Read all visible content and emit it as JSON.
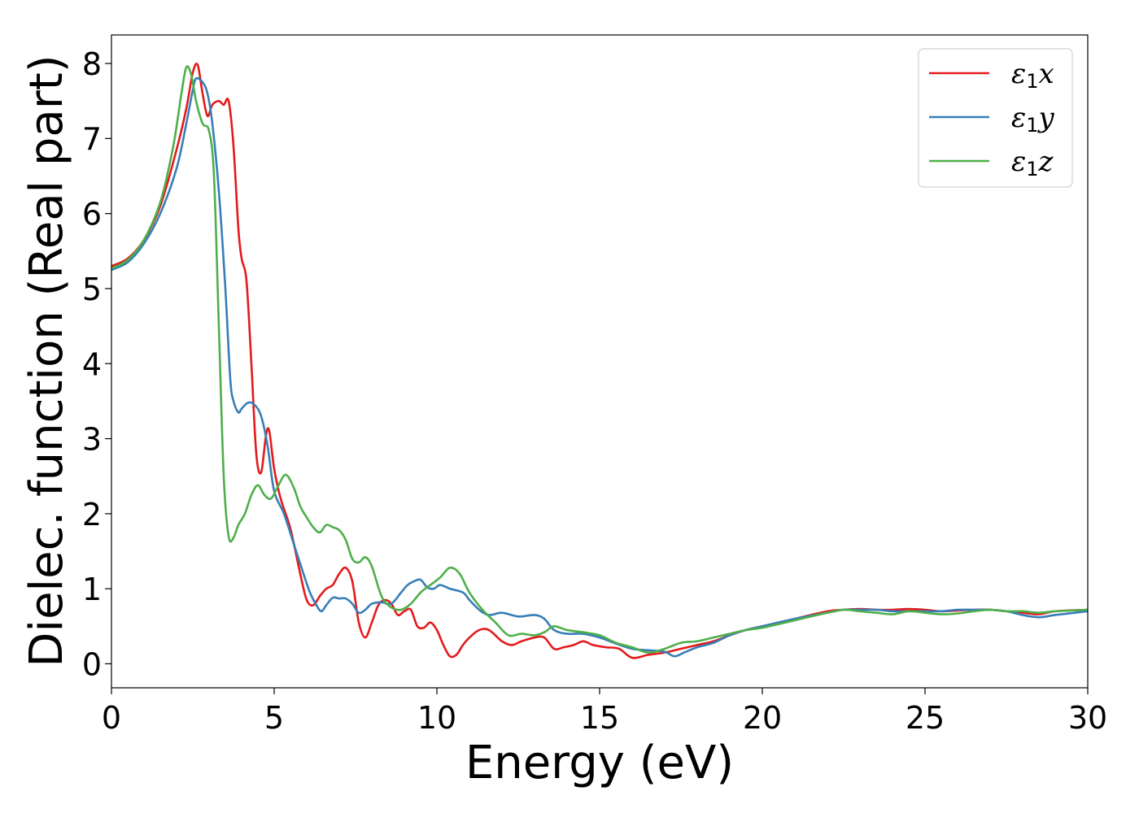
{
  "chart_data": {
    "type": "line",
    "title": "",
    "xlabel": "Energy (eV)",
    "ylabel": "Dielec. function (Real part)",
    "xlim": [
      0,
      30
    ],
    "ylim": [
      -0.32,
      8.38
    ],
    "xticks": [
      0,
      5,
      10,
      15,
      20,
      25,
      30
    ],
    "yticks": [
      0,
      1,
      2,
      3,
      4,
      5,
      6,
      7,
      8
    ],
    "grid": false,
    "legend_position": "top-right",
    "series": [
      {
        "name": "ε₁x",
        "legend": {
          "base": "ε",
          "sub": "1",
          "tail": "x"
        },
        "color": "#e41a1c",
        "x": [
          0,
          0.5,
          1.0,
          1.5,
          2.0,
          2.3,
          2.5,
          2.65,
          2.8,
          2.95,
          3.1,
          3.3,
          3.45,
          3.6,
          3.75,
          3.9,
          4.0,
          4.15,
          4.3,
          4.45,
          4.6,
          4.75,
          4.85,
          5.0,
          5.2,
          5.5,
          5.8,
          6.0,
          6.2,
          6.4,
          6.6,
          6.8,
          7.0,
          7.2,
          7.4,
          7.6,
          7.8,
          8.0,
          8.2,
          8.4,
          8.6,
          8.8,
          9.0,
          9.2,
          9.4,
          9.6,
          9.8,
          10.0,
          10.2,
          10.4,
          10.6,
          10.8,
          11.0,
          11.3,
          11.6,
          12.0,
          12.3,
          12.6,
          13.0,
          13.3,
          13.6,
          13.9,
          14.2,
          14.5,
          14.8,
          15.2,
          15.6,
          16.0,
          16.5,
          17.0,
          17.5,
          18.0,
          18.5,
          19.0,
          19.5,
          20.0,
          21.0,
          22.0,
          22.5,
          23.0,
          23.5,
          24.0,
          24.5,
          25.0,
          25.5,
          26.0,
          26.5,
          27.0,
          27.5,
          28.0,
          28.5,
          29.0,
          30.0
        ],
        "values": [
          5.3,
          5.4,
          5.65,
          6.1,
          6.85,
          7.4,
          7.88,
          7.98,
          7.6,
          7.3,
          7.45,
          7.5,
          7.45,
          7.5,
          6.9,
          5.8,
          5.4,
          5.1,
          4.0,
          2.8,
          2.55,
          3.05,
          3.1,
          2.6,
          2.2,
          1.8,
          1.2,
          0.85,
          0.78,
          0.9,
          1.0,
          1.05,
          1.2,
          1.28,
          1.1,
          0.55,
          0.35,
          0.55,
          0.78,
          0.85,
          0.8,
          0.65,
          0.7,
          0.72,
          0.5,
          0.48,
          0.55,
          0.45,
          0.25,
          0.1,
          0.12,
          0.25,
          0.35,
          0.45,
          0.45,
          0.3,
          0.25,
          0.3,
          0.35,
          0.35,
          0.2,
          0.22,
          0.25,
          0.3,
          0.25,
          0.22,
          0.2,
          0.08,
          0.12,
          0.15,
          0.2,
          0.25,
          0.3,
          0.38,
          0.45,
          0.5,
          0.6,
          0.7,
          0.72,
          0.73,
          0.72,
          0.72,
          0.73,
          0.72,
          0.7,
          0.71,
          0.72,
          0.72,
          0.7,
          0.68,
          0.66,
          0.7,
          0.72
        ]
      },
      {
        "name": "ε₁y",
        "legend": {
          "base": "ε",
          "sub": "1",
          "tail": "y"
        },
        "color": "#377eb8",
        "x": [
          0,
          0.5,
          1.0,
          1.5,
          2.0,
          2.3,
          2.5,
          2.6,
          2.8,
          2.95,
          3.1,
          3.3,
          3.5,
          3.65,
          3.75,
          3.9,
          4.0,
          4.2,
          4.4,
          4.6,
          4.8,
          5.0,
          5.3,
          5.6,
          5.9,
          6.1,
          6.3,
          6.45,
          6.6,
          6.8,
          7.0,
          7.2,
          7.4,
          7.6,
          7.8,
          8.0,
          8.3,
          8.6,
          8.9,
          9.1,
          9.3,
          9.5,
          9.7,
          9.9,
          10.1,
          10.4,
          10.8,
          11.0,
          11.3,
          11.6,
          12.0,
          12.5,
          13.0,
          13.3,
          13.6,
          14.0,
          14.5,
          15.0,
          15.5,
          16.0,
          16.5,
          17.0,
          17.3,
          17.6,
          18.0,
          18.5,
          19.0,
          19.5,
          20.0,
          21.0,
          22.0,
          22.5,
          23.0,
          23.5,
          24.0,
          24.5,
          25.0,
          25.5,
          26.0,
          26.5,
          27.0,
          27.5,
          28.0,
          28.5,
          29.0,
          30.0
        ],
        "values": [
          5.25,
          5.35,
          5.6,
          6.0,
          6.6,
          7.2,
          7.65,
          7.8,
          7.75,
          7.6,
          7.2,
          6.3,
          5.0,
          3.8,
          3.5,
          3.35,
          3.4,
          3.48,
          3.45,
          3.3,
          2.9,
          2.3,
          2.0,
          1.6,
          1.2,
          0.95,
          0.78,
          0.7,
          0.78,
          0.88,
          0.87,
          0.87,
          0.8,
          0.68,
          0.72,
          0.8,
          0.82,
          0.8,
          0.95,
          1.05,
          1.1,
          1.12,
          1.02,
          1.0,
          1.05,
          1.0,
          0.95,
          0.85,
          0.72,
          0.65,
          0.68,
          0.63,
          0.65,
          0.6,
          0.45,
          0.4,
          0.4,
          0.35,
          0.27,
          0.2,
          0.18,
          0.16,
          0.1,
          0.15,
          0.22,
          0.28,
          0.38,
          0.45,
          0.5,
          0.6,
          0.68,
          0.72,
          0.72,
          0.72,
          0.7,
          0.7,
          0.7,
          0.7,
          0.72,
          0.72,
          0.72,
          0.7,
          0.65,
          0.62,
          0.65,
          0.7
        ]
      },
      {
        "name": "ε₁z",
        "legend": {
          "base": "ε",
          "sub": "1",
          "tail": "z"
        },
        "color": "#4daf4a",
        "x": [
          0,
          0.5,
          1.0,
          1.5,
          1.9,
          2.15,
          2.3,
          2.45,
          2.6,
          2.8,
          3.0,
          3.15,
          3.3,
          3.45,
          3.6,
          3.75,
          3.9,
          4.1,
          4.3,
          4.5,
          4.7,
          4.9,
          5.1,
          5.35,
          5.6,
          5.8,
          6.0,
          6.2,
          6.4,
          6.6,
          6.8,
          7.0,
          7.2,
          7.4,
          7.6,
          7.8,
          8.0,
          8.3,
          8.6,
          8.9,
          9.2,
          9.5,
          9.8,
          10.1,
          10.4,
          10.7,
          11.0,
          11.4,
          11.8,
          12.2,
          12.6,
          13.0,
          13.3,
          13.6,
          14.0,
          14.5,
          15.0,
          15.5,
          16.0,
          16.5,
          17.0,
          17.5,
          18.0,
          18.5,
          19.0,
          19.5,
          20.0,
          21.0,
          22.0,
          22.5,
          23.0,
          23.5,
          24.0,
          24.5,
          25.0,
          25.5,
          26.0,
          26.5,
          27.0,
          27.5,
          28.0,
          28.5,
          29.0,
          30.0
        ],
        "values": [
          5.27,
          5.38,
          5.65,
          6.15,
          6.9,
          7.6,
          7.95,
          7.85,
          7.5,
          7.2,
          7.1,
          6.5,
          4.5,
          2.5,
          1.7,
          1.68,
          1.85,
          2.0,
          2.25,
          2.38,
          2.25,
          2.2,
          2.35,
          2.52,
          2.35,
          2.1,
          1.95,
          1.82,
          1.75,
          1.85,
          1.82,
          1.78,
          1.65,
          1.4,
          1.35,
          1.42,
          1.3,
          0.9,
          0.75,
          0.72,
          0.8,
          0.95,
          1.05,
          1.15,
          1.28,
          1.2,
          0.95,
          0.72,
          0.55,
          0.38,
          0.4,
          0.38,
          0.42,
          0.5,
          0.45,
          0.42,
          0.38,
          0.28,
          0.22,
          0.15,
          0.2,
          0.28,
          0.3,
          0.35,
          0.4,
          0.45,
          0.48,
          0.58,
          0.68,
          0.72,
          0.7,
          0.68,
          0.66,
          0.7,
          0.68,
          0.66,
          0.67,
          0.7,
          0.72,
          0.7,
          0.7,
          0.68,
          0.7,
          0.72
        ]
      }
    ]
  }
}
